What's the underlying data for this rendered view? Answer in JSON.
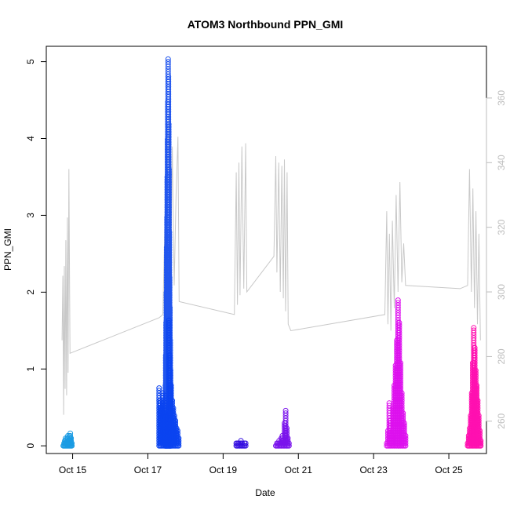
{
  "chart_data": {
    "type": "scatter",
    "title": "ATOM3 Northbound PPN_GMI",
    "xlabel": "Date",
    "ylabel": "PPN_GMI",
    "x_ticks": [
      "Oct 15",
      "Oct 17",
      "Oct 19",
      "Oct 21",
      "Oct 23",
      "Oct 25"
    ],
    "x_tick_days": [
      15,
      17,
      19,
      21,
      23,
      25
    ],
    "xlim_days": [
      14.3,
      26.0
    ],
    "ylim": [
      -0.1,
      5.2
    ],
    "y_ticks": [
      0,
      1,
      2,
      3,
      4,
      5
    ],
    "y2lim": [
      250,
      376
    ],
    "y2_ticks": [
      260,
      280,
      300,
      320,
      340,
      360
    ],
    "grid": false,
    "scatter_series": [
      {
        "color": "#1a9be3",
        "day_start": 14.75,
        "day_end": 14.98,
        "values": [
          0.02,
          0.05,
          0.08,
          0.1,
          0.06,
          0.12,
          0.15,
          0.09,
          0.14,
          0.16,
          0.11,
          0.04
        ]
      },
      {
        "color": "#2357ee",
        "day_start": 17.45,
        "day_end": 17.62,
        "values": [
          0.1,
          0.4,
          0.8,
          1.2,
          1.6,
          2.0,
          2.6,
          3.0,
          3.5,
          4.0,
          4.5,
          5.05,
          4.8,
          4.2,
          3.6,
          2.8,
          2.2,
          1.8,
          1.4,
          1.0,
          0.6,
          0.3
        ]
      },
      {
        "color": "#0b44f0",
        "day_start": 17.3,
        "day_end": 17.82,
        "values": [
          0.75,
          0.6,
          0.5,
          0.7,
          0.45,
          0.55,
          0.65,
          0.4,
          0.3,
          1.65,
          1.2,
          0.8,
          0.6,
          0.5,
          0.4,
          0.35,
          0.25,
          0.2,
          0.1
        ]
      },
      {
        "color": "#3510e0",
        "day_start": 19.35,
        "day_end": 19.6,
        "values": [
          0.04,
          0.06,
          0.05,
          0.03,
          0.07,
          0.04,
          0.02,
          0.05,
          0.03
        ]
      },
      {
        "color": "#7a14ec",
        "day_start": 20.4,
        "day_end": 20.75,
        "values": [
          0.02,
          0.03,
          0.05,
          0.08,
          0.04,
          0.1,
          0.15,
          0.08,
          0.3,
          0.47,
          0.25,
          0.12,
          0.06
        ]
      },
      {
        "color": "#dd11ee",
        "day_start": 23.35,
        "day_end": 23.85,
        "values": [
          0.05,
          0.2,
          0.58,
          0.35,
          0.15,
          0.5,
          0.8,
          1.05,
          1.4,
          1.9,
          1.6,
          1.1,
          0.7,
          0.45,
          0.3,
          0.15
        ]
      },
      {
        "color": "#ff10b0",
        "day_start": 25.5,
        "day_end": 25.85,
        "values": [
          0.05,
          0.15,
          0.25,
          0.4,
          0.7,
          1.1,
          1.56,
          1.3,
          1.0,
          0.8,
          0.6,
          0.4,
          0.2,
          0.08
        ]
      }
    ],
    "line_series": {
      "color": "#c8c8c8",
      "axis": "right",
      "points": [
        [
          14.72,
          285
        ],
        [
          14.74,
          305
        ],
        [
          14.76,
          262
        ],
        [
          14.78,
          308
        ],
        [
          14.8,
          270
        ],
        [
          14.82,
          316
        ],
        [
          14.84,
          268
        ],
        [
          14.86,
          323
        ],
        [
          14.88,
          275
        ],
        [
          14.9,
          338
        ],
        [
          14.93,
          281
        ],
        [
          17.3,
          292
        ],
        [
          17.4,
          293
        ],
        [
          17.45,
          320
        ],
        [
          17.5,
          296
        ],
        [
          17.55,
          355
        ],
        [
          17.6,
          300
        ],
        [
          17.65,
          345
        ],
        [
          17.7,
          302
        ],
        [
          17.75,
          330
        ],
        [
          17.8,
          348
        ],
        [
          17.83,
          297
        ],
        [
          19.3,
          293
        ],
        [
          19.35,
          337
        ],
        [
          19.38,
          296
        ],
        [
          19.42,
          340
        ],
        [
          19.45,
          299
        ],
        [
          19.5,
          345
        ],
        [
          19.55,
          301
        ],
        [
          19.6,
          346
        ],
        [
          19.63,
          300
        ],
        [
          20.35,
          311
        ],
        [
          20.4,
          342
        ],
        [
          20.43,
          306
        ],
        [
          20.48,
          340
        ],
        [
          20.52,
          300
        ],
        [
          20.56,
          339
        ],
        [
          20.6,
          298
        ],
        [
          20.63,
          341
        ],
        [
          20.66,
          294
        ],
        [
          20.7,
          337
        ],
        [
          20.73,
          290
        ],
        [
          20.8,
          288
        ],
        [
          23.3,
          293
        ],
        [
          23.35,
          325
        ],
        [
          23.38,
          290
        ],
        [
          23.42,
          318
        ],
        [
          23.46,
          288
        ],
        [
          23.5,
          322
        ],
        [
          23.55,
          295
        ],
        [
          23.6,
          330
        ],
        [
          23.65,
          300
        ],
        [
          23.7,
          334
        ],
        [
          23.75,
          303
        ],
        [
          23.8,
          315
        ],
        [
          23.85,
          302
        ],
        [
          25.3,
          301
        ],
        [
          25.5,
          302
        ],
        [
          25.55,
          338
        ],
        [
          25.6,
          300
        ],
        [
          25.64,
          332
        ],
        [
          25.68,
          295
        ],
        [
          25.72,
          325
        ],
        [
          25.76,
          290
        ],
        [
          25.8,
          318
        ],
        [
          25.84,
          285
        ]
      ]
    }
  }
}
